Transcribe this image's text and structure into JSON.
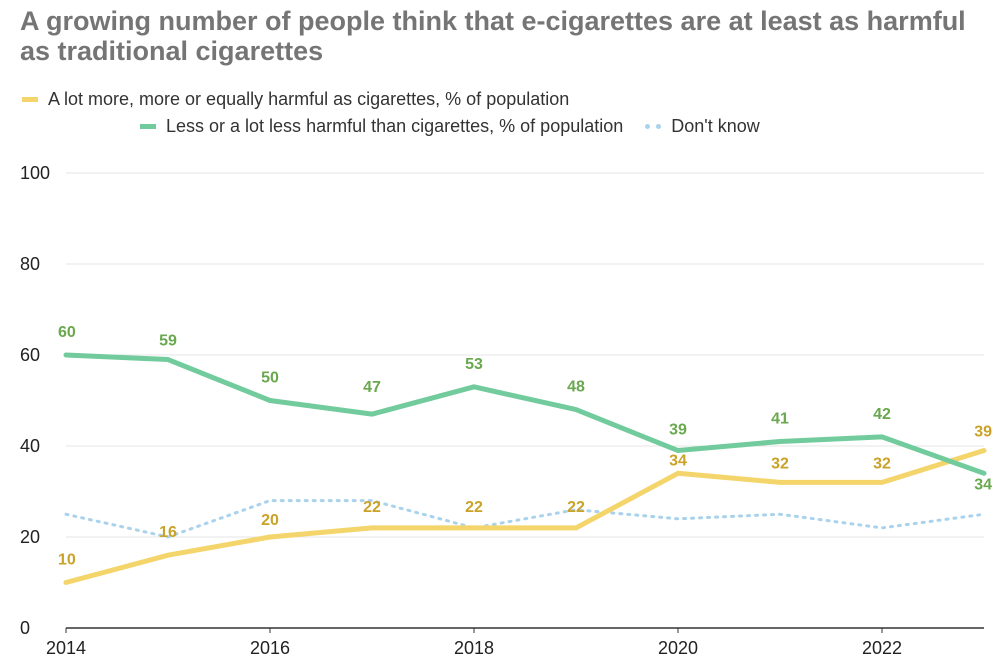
{
  "title": "A growing number of people think that e-cigarettes are at least as harmful as traditional cigarettes",
  "legend": {
    "more_harmful": "A lot more, more or equally harmful as cigarettes, % of population",
    "less_harmful": "Less or a lot less harmful than cigarettes, % of population",
    "dont_know": "Don't know"
  },
  "colors": {
    "more_harmful": "#f4d56b",
    "more_harmful_label": "#c9a227",
    "less_harmful": "#72cb9c",
    "less_harmful_label": "#6aa84f",
    "dont_know": "#a9d2ec",
    "grid": "#e6e6e6",
    "axis": "#333333"
  },
  "chart_data": {
    "type": "line",
    "title": "A growing number of people think that e-cigarettes are at least as harmful as traditional cigarettes",
    "x": [
      2014,
      2015,
      2016,
      2017,
      2018,
      2019,
      2020,
      2021,
      2022,
      2023
    ],
    "xlim": [
      2014,
      2023
    ],
    "ylim": [
      0,
      100
    ],
    "x_ticks": [
      2014,
      2016,
      2018,
      2020,
      2022
    ],
    "y_ticks": [
      0,
      20,
      40,
      60,
      80,
      100
    ],
    "grid": "horizontal",
    "legend_position": "top",
    "series": [
      {
        "key": "more_harmful",
        "name": "A lot more, more or equally harmful as cigarettes, % of population",
        "values": [
          10,
          16,
          20,
          22,
          22,
          22,
          34,
          32,
          32,
          39
        ],
        "labeled": true,
        "style": "solid"
      },
      {
        "key": "less_harmful",
        "name": "Less or a lot less harmful than cigarettes, % of population",
        "values": [
          60,
          59,
          50,
          47,
          53,
          48,
          39,
          41,
          42,
          34
        ],
        "labeled": true,
        "style": "solid"
      },
      {
        "key": "dont_know",
        "name": "Don't know",
        "values": [
          25,
          20,
          28,
          28,
          22,
          26,
          24,
          25,
          22,
          25
        ],
        "labeled": false,
        "style": "dotted"
      }
    ]
  }
}
